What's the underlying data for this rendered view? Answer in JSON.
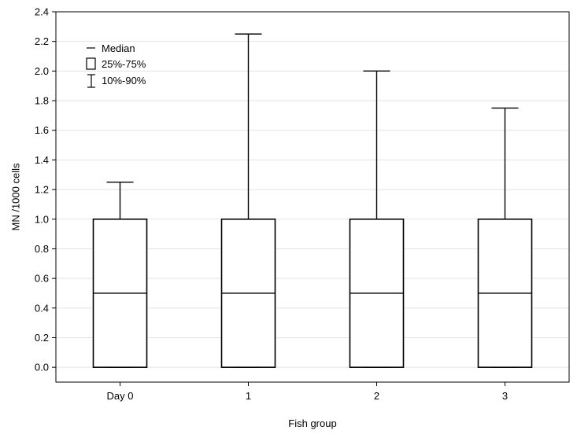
{
  "chart_data": {
    "type": "box",
    "xlabel": "Fish group",
    "ylabel": "MN /1000 cells",
    "ylim": [
      -0.1,
      2.4
    ],
    "yticks": [
      0.0,
      0.2,
      0.4,
      0.6,
      0.8,
      1.0,
      1.2,
      1.4,
      1.6,
      1.8,
      2.0,
      2.2,
      2.4
    ],
    "ytick_labels": [
      "0.0",
      "0.2",
      "0.4",
      "0.6",
      "0.8",
      "1.0",
      "1.2",
      "1.4",
      "1.6",
      "1.8",
      "2.0",
      "2.2",
      "2.4"
    ],
    "grid": true,
    "legend_position": "top-left",
    "legend": [
      "Median",
      "25%-75%",
      "10%-90%"
    ],
    "categories": [
      "Day 0",
      "1",
      "2",
      "3"
    ],
    "boxes": [
      {
        "category": "Day 0",
        "whisker_low": 0.0,
        "q1": 0.0,
        "median": 0.5,
        "q3": 1.0,
        "whisker_high": 1.25
      },
      {
        "category": "1",
        "whisker_low": 0.0,
        "q1": 0.0,
        "median": 0.5,
        "q3": 1.0,
        "whisker_high": 2.25
      },
      {
        "category": "2",
        "whisker_low": 0.0,
        "q1": 0.0,
        "median": 0.5,
        "q3": 1.0,
        "whisker_high": 2.0
      },
      {
        "category": "3",
        "whisker_low": 0.0,
        "q1": 0.0,
        "median": 0.5,
        "q3": 1.0,
        "whisker_high": 1.75
      }
    ]
  }
}
